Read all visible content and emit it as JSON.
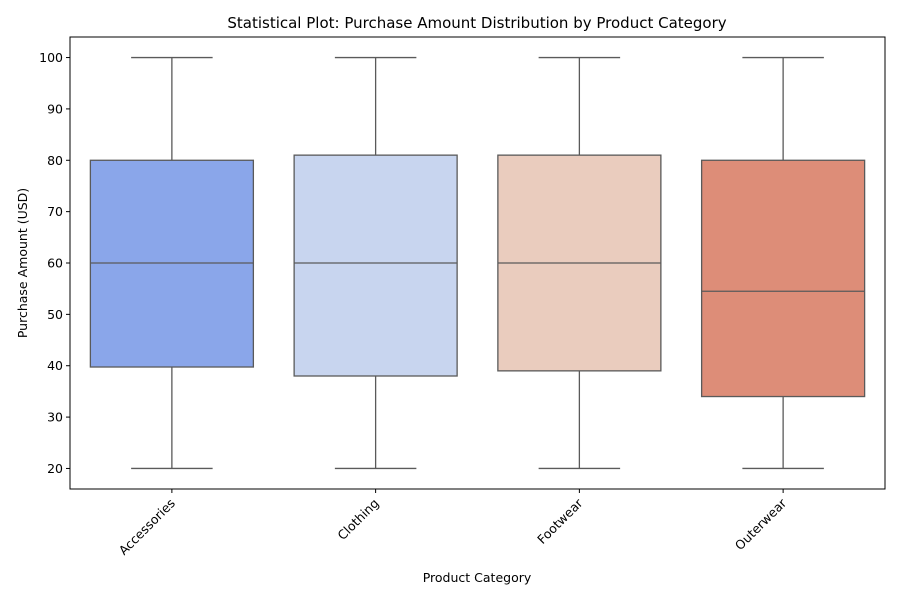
{
  "chart_data": {
    "type": "box",
    "title": "Statistical Plot: Purchase Amount Distribution by Product Category",
    "xlabel": "Product Category",
    "ylabel": "Purchase Amount (USD)",
    "ylim": [
      16,
      104
    ],
    "yticks": [
      20,
      30,
      40,
      50,
      60,
      70,
      80,
      90,
      100
    ],
    "grid": false,
    "categories": [
      "Accessories",
      "Clothing",
      "Footwear",
      "Outerwear"
    ],
    "boxes": [
      {
        "category": "Accessories",
        "min": 20,
        "q1": 39.75,
        "median": 60,
        "q3": 80,
        "max": 100,
        "color": "#8aa6ea"
      },
      {
        "category": "Clothing",
        "min": 20,
        "q1": 38,
        "median": 60,
        "q3": 81,
        "max": 100,
        "color": "#c8d5ef"
      },
      {
        "category": "Footwear",
        "min": 20,
        "q1": 39,
        "median": 60,
        "q3": 81,
        "max": 100,
        "color": "#eaccbe"
      },
      {
        "category": "Outerwear",
        "min": 20,
        "q1": 34,
        "median": 54.5,
        "q3": 80,
        "max": 100,
        "color": "#dd8d78"
      }
    ]
  }
}
